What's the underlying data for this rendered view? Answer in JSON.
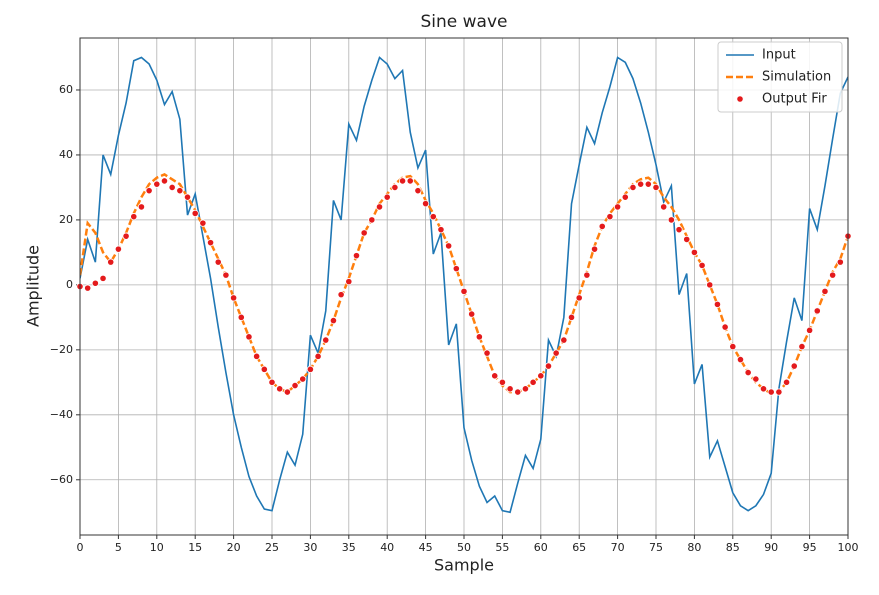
{
  "chart_data": {
    "type": "line",
    "title": "Sine wave",
    "xlabel": "Sample",
    "ylabel": "Amplitude",
    "x": [
      0,
      1,
      2,
      3,
      4,
      5,
      6,
      7,
      8,
      9,
      10,
      11,
      12,
      13,
      14,
      15,
      16,
      17,
      18,
      19,
      20,
      21,
      22,
      23,
      24,
      25,
      26,
      27,
      28,
      29,
      30,
      31,
      32,
      33,
      34,
      35,
      36,
      37,
      38,
      39,
      40,
      41,
      42,
      43,
      44,
      45,
      46,
      47,
      48,
      49,
      50,
      51,
      52,
      53,
      54,
      55,
      56,
      57,
      58,
      59,
      60,
      61,
      62,
      63,
      64,
      65,
      66,
      67,
      68,
      69,
      70,
      71,
      72,
      73,
      74,
      75,
      76,
      77,
      78,
      79,
      80,
      81,
      82,
      83,
      84,
      85,
      86,
      87,
      88,
      89,
      90,
      91,
      92,
      93,
      94,
      95,
      96,
      97,
      98,
      99,
      100
    ],
    "series": [
      {
        "name": "Input",
        "color": "#1f77b4",
        "style": "solid",
        "values": [
          2,
          14,
          7,
          40,
          34,
          46,
          56,
          69,
          70,
          68,
          63,
          55.5,
          59.5,
          51,
          21.5,
          28,
          15,
          2,
          -13,
          -27,
          -40,
          -50,
          -59,
          -65,
          -69,
          -69.5,
          -60,
          -51.5,
          -55.5,
          -46,
          -15.5,
          -21,
          -8,
          26,
          20,
          49.5,
          44.5,
          55,
          63,
          70,
          68,
          63.5,
          66,
          47,
          36,
          41.5,
          9.5,
          16,
          -18.5,
          -12,
          -44,
          -54,
          -62,
          -67,
          -65,
          -69.5,
          -70,
          -61,
          -52.5,
          -56.5,
          -47.5,
          -17,
          -22,
          -10,
          25,
          37,
          48.5,
          43.5,
          53,
          61,
          70,
          68.5,
          63.5,
          56,
          47,
          37,
          25.5,
          30.5,
          -3,
          3.5,
          -30.5,
          -24.5,
          -53,
          -48,
          -56,
          -64,
          -68,
          -69.5,
          -68,
          -64.5,
          -58,
          -32,
          -17.5,
          -4,
          -11,
          23.5,
          17,
          30.5,
          45,
          59,
          64
        ]
      },
      {
        "name": "Simulation",
        "color": "#ff7f0e",
        "style": "dashed",
        "values": [
          3,
          19,
          16,
          10,
          7,
          11,
          16,
          22,
          27,
          31,
          33,
          34,
          32.5,
          31,
          27,
          23,
          18,
          13,
          8,
          3,
          -4,
          -10,
          -16,
          -22,
          -26,
          -30,
          -32,
          -33,
          -31,
          -29,
          -26,
          -22,
          -17,
          -11,
          -4,
          2,
          9,
          16,
          20,
          25,
          28,
          31,
          33,
          33.5,
          31,
          26,
          22,
          17,
          12,
          5,
          -2,
          -9,
          -16,
          -22,
          -28,
          -31,
          -33,
          -33,
          -32,
          -30,
          -28,
          -25,
          -21,
          -17,
          -10,
          -3,
          4,
          12,
          18,
          22,
          25,
          28,
          31,
          32.5,
          33,
          31,
          27,
          24,
          20,
          15,
          10,
          6,
          0,
          -6,
          -13,
          -19,
          -23,
          -27,
          -30,
          -32,
          -33.5,
          -33,
          -30,
          -25,
          -19,
          -14,
          -8,
          -2,
          4,
          8,
          15
        ]
      },
      {
        "name": "Output Fir",
        "color": "#e41a1c",
        "style": "scatter",
        "values": [
          -0.5,
          -1,
          0.5,
          2,
          7,
          11,
          15,
          21,
          24,
          29,
          31,
          32,
          30,
          29,
          27,
          22,
          19,
          13,
          7,
          3,
          -4,
          -10,
          -16,
          -22,
          -26,
          -30,
          -32,
          -33,
          -31,
          -29,
          -26,
          -22,
          -17,
          -11,
          -3,
          1,
          9,
          16,
          20,
          24,
          27,
          30,
          32,
          32,
          29,
          25,
          21,
          17,
          12,
          5,
          -2,
          -9,
          -16,
          -21,
          -28,
          -30,
          -32,
          -33,
          -32,
          -30,
          -28,
          -25,
          -21,
          -17,
          -10,
          -4,
          3,
          11,
          18,
          21,
          24,
          27,
          30,
          31,
          31,
          30,
          24,
          20,
          17,
          14,
          10,
          6,
          0,
          -6,
          -13,
          -19,
          -23,
          -27,
          -29,
          -32,
          -33,
          -33,
          -30,
          -25,
          -19,
          -14,
          -8,
          -2,
          3,
          7,
          15
        ]
      }
    ],
    "xlim": [
      0,
      100
    ],
    "ylim": [
      -77,
      76
    ],
    "xticks": [
      0,
      5,
      10,
      15,
      20,
      25,
      30,
      35,
      40,
      45,
      50,
      55,
      60,
      65,
      70,
      75,
      80,
      85,
      90,
      95,
      100
    ],
    "yticks": [
      {
        "value": -60,
        "label": "−60"
      },
      {
        "value": -40,
        "label": "−40"
      },
      {
        "value": -20,
        "label": "−20"
      },
      0,
      20,
      40,
      60
    ],
    "grid": true,
    "legend": "upper right"
  }
}
